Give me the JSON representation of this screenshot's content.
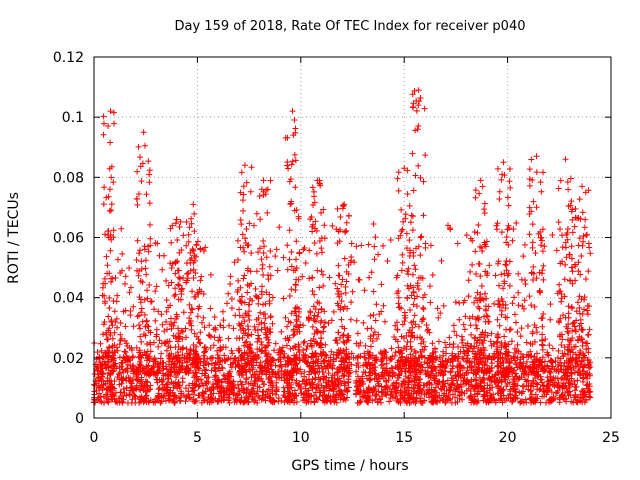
{
  "chart_data": {
    "type": "scatter",
    "title": "Day 159 of 2018, Rate Of TEC Index for receiver p040",
    "xlabel": "GPS time / hours",
    "ylabel": "ROTI / TECUs",
    "xlim": [
      0,
      25
    ],
    "ylim": [
      0,
      0.12
    ],
    "x_ticks": [
      0,
      5,
      10,
      15,
      20,
      25
    ],
    "x_tick_labels": [
      "0",
      "5",
      "10",
      "15",
      "20",
      "25"
    ],
    "y_ticks": [
      0,
      0.02,
      0.04,
      0.06,
      0.08,
      0.1,
      0.12
    ],
    "y_tick_labels": [
      "0",
      "0.02",
      "0.04",
      "0.06",
      "0.08",
      "0.1",
      "0.12"
    ],
    "grid": true,
    "marker": "+",
    "color": "#ff0000",
    "x_range_of_data": [
      0,
      24
    ],
    "baseline_band": [
      0.005,
      0.02
    ],
    "peaks": [
      {
        "x": 0.8,
        "y": 0.102
      },
      {
        "x": 2.4,
        "y": 0.095
      },
      {
        "x": 4.0,
        "y": 0.066
      },
      {
        "x": 4.8,
        "y": 0.071
      },
      {
        "x": 7.3,
        "y": 0.084
      },
      {
        "x": 8.2,
        "y": 0.079
      },
      {
        "x": 9.6,
        "y": 0.102
      },
      {
        "x": 10.8,
        "y": 0.079
      },
      {
        "x": 12.1,
        "y": 0.071
      },
      {
        "x": 15.0,
        "y": 0.083
      },
      {
        "x": 15.7,
        "y": 0.109
      },
      {
        "x": 18.7,
        "y": 0.079
      },
      {
        "x": 19.8,
        "y": 0.085
      },
      {
        "x": 21.4,
        "y": 0.087
      },
      {
        "x": 22.8,
        "y": 0.086
      },
      {
        "x": 23.6,
        "y": 0.077
      }
    ]
  }
}
